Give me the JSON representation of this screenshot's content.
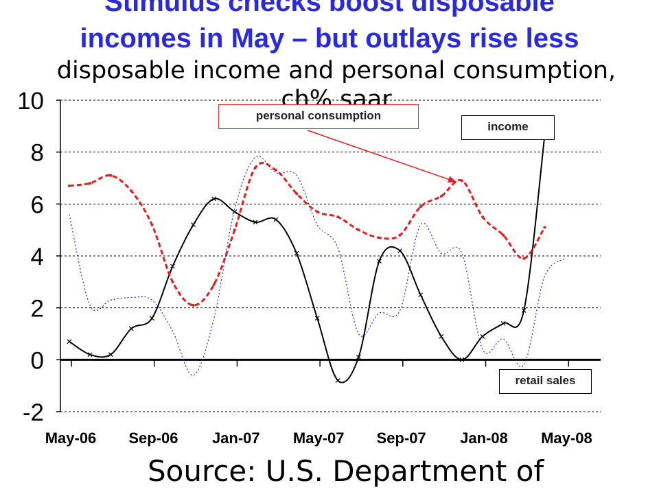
{
  "header": {
    "title_line1": "Stimulus checks boost disposable",
    "title_line2": "incomes in May – but outlays rise less",
    "subtitle_line1": "disposable income and personal consumption,",
    "subtitle_line2": "ch% saar"
  },
  "source": "Source: U.S. Department of",
  "colors": {
    "title": "#2a2ad8",
    "income": "#000000",
    "consumption": "#e02020",
    "retail_sales": "#2222cc"
  },
  "chart_data": {
    "type": "line",
    "x": [
      "May-06",
      "Jun-06",
      "Jul-06",
      "Aug-06",
      "Sep-06",
      "Oct-06",
      "Nov-06",
      "Dec-06",
      "Jan-07",
      "Feb-07",
      "Mar-07",
      "Apr-07",
      "May-07",
      "Jun-07",
      "Jul-07",
      "Aug-07",
      "Sep-07",
      "Oct-07",
      "Nov-07",
      "Dec-07",
      "Jan-08",
      "Feb-08",
      "Mar-08",
      "Apr-08",
      "May-08"
    ],
    "x_tick_labels": [
      "May-06",
      "Sep-06",
      "Jan-07",
      "May-07",
      "Sep-07",
      "Jan-08",
      "May-08"
    ],
    "y_ticks": [
      -2,
      0,
      2,
      4,
      6,
      8,
      10
    ],
    "ylim": [
      -2,
      10
    ],
    "grid": "horizontal dashed",
    "annotations": [
      "personal consumption",
      "income",
      "retail sales"
    ],
    "series": [
      {
        "name": "income",
        "values": [
          0.7,
          0.2,
          0.2,
          1.2,
          1.6,
          3.6,
          5.2,
          6.2,
          5.7,
          5.3,
          5.4,
          4.1,
          1.6,
          -0.8,
          0.1,
          3.8,
          4.2,
          2.5,
          0.9,
          0.0,
          0.9,
          1.4,
          1.9,
          8.6,
          null
        ]
      },
      {
        "name": "personal consumption",
        "values": [
          6.7,
          6.8,
          7.1,
          6.5,
          5.2,
          3.0,
          2.1,
          2.9,
          5.0,
          7.4,
          7.3,
          6.4,
          5.7,
          5.5,
          5.0,
          4.7,
          4.8,
          5.9,
          6.3,
          6.9,
          5.5,
          4.8,
          3.9,
          5.1,
          null
        ]
      },
      {
        "name": "retail sales",
        "values": [
          5.6,
          2.1,
          2.3,
          2.4,
          2.3,
          1.1,
          -0.6,
          1.6,
          5.8,
          7.8,
          7.2,
          7.1,
          5.2,
          4.3,
          1.0,
          1.8,
          1.9,
          5.2,
          4.1,
          4.1,
          0.4,
          0.8,
          -0.2,
          3.2,
          3.9
        ]
      }
    ]
  }
}
